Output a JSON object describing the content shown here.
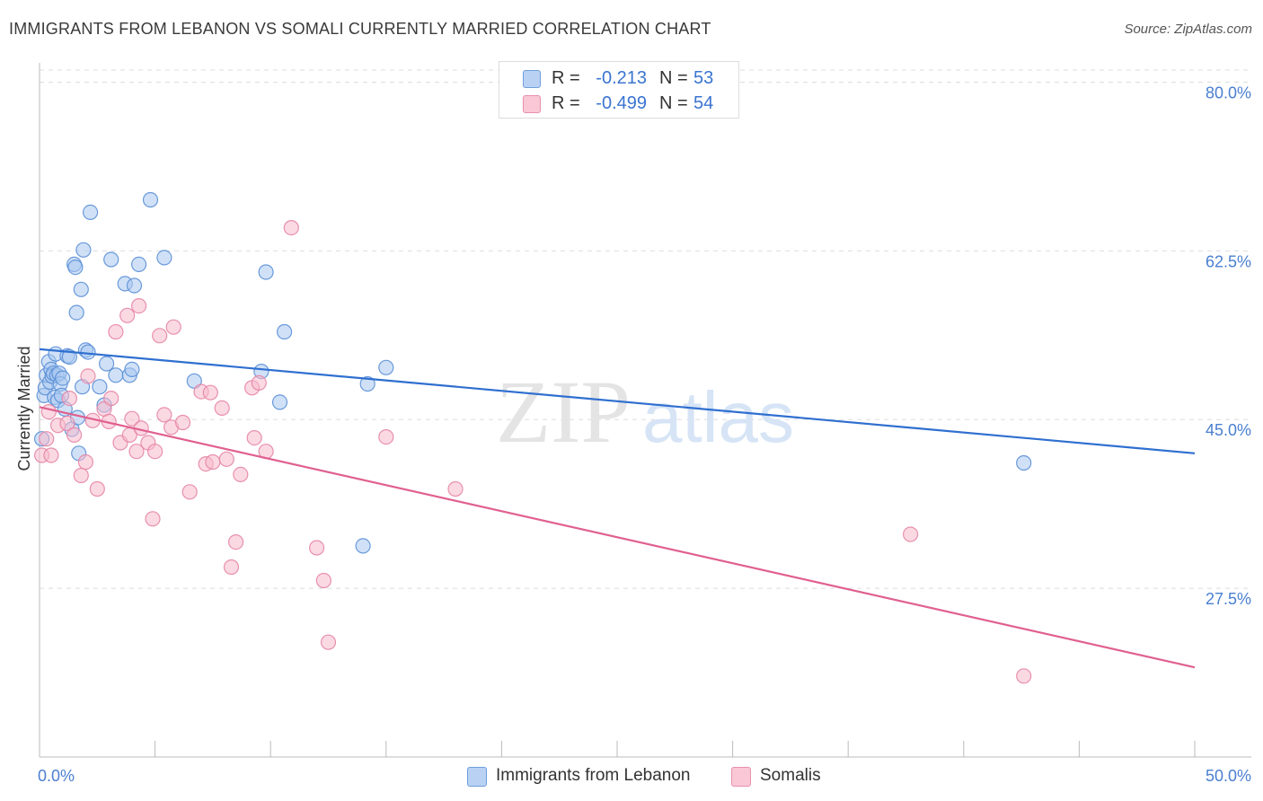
{
  "title": "IMMIGRANTS FROM LEBANON VS SOMALI CURRENTLY MARRIED CORRELATION CHART",
  "source": "Source: ZipAtlas.com",
  "watermark": {
    "zip": "ZIP",
    "atlas": "atlas"
  },
  "colors": {
    "blue_fill": "#a9c8f0",
    "blue_stroke": "#5b8fd6",
    "blue_line": "#2f6fd0",
    "pink_fill": "#f7b9cc",
    "pink_stroke": "#e585a6",
    "pink_line": "#e0608f",
    "axis_label": "#4a7fd0",
    "grid": "#dddddd"
  },
  "legend": [
    {
      "r_label": "R =",
      "r_value": "-0.213",
      "n_label": "N =",
      "n_value": "53"
    },
    {
      "r_label": "R =",
      "r_value": "-0.499",
      "n_label": "N =",
      "n_value": "54"
    }
  ],
  "bottom_legend": [
    "Immigrants from Lebanon",
    "Somalis"
  ],
  "chart_data": {
    "type": "scatter",
    "title": "IMMIGRANTS FROM LEBANON VS SOMALI CURRENTLY MARRIED CORRELATION CHART",
    "xlabel": "",
    "ylabel": "Currently Married",
    "xlim": [
      0,
      50
    ],
    "ylim": [
      10,
      82
    ],
    "x_tick_labels": [
      "0.0%",
      "50.0%"
    ],
    "y_ticks": [
      27.5,
      45.0,
      62.5,
      80.0
    ],
    "y_tick_labels": [
      "27.5%",
      "45.0%",
      "62.5%",
      "80.0%"
    ],
    "grid": true,
    "series": [
      {
        "name": "Immigrants from Lebanon",
        "r": -0.213,
        "n": 53,
        "trend": {
          "x": [
            0,
            50
          ],
          "y": [
            52.3,
            41.5
          ]
        },
        "points": [
          [
            0.1,
            43.0
          ],
          [
            0.2,
            47.5
          ],
          [
            0.25,
            48.3
          ],
          [
            0.3,
            49.6
          ],
          [
            0.4,
            51.0
          ],
          [
            0.45,
            48.9
          ],
          [
            0.5,
            50.2
          ],
          [
            0.55,
            49.5
          ],
          [
            0.6,
            49.8
          ],
          [
            0.65,
            47.3
          ],
          [
            0.7,
            51.8
          ],
          [
            0.75,
            49.6
          ],
          [
            0.8,
            47.0
          ],
          [
            0.85,
            49.8
          ],
          [
            0.9,
            48.7
          ],
          [
            0.95,
            47.5
          ],
          [
            1.0,
            49.3
          ],
          [
            1.1,
            46.1
          ],
          [
            1.2,
            51.6
          ],
          [
            1.3,
            51.5
          ],
          [
            1.4,
            44.0
          ],
          [
            1.5,
            61.1
          ],
          [
            1.55,
            60.8
          ],
          [
            1.6,
            56.1
          ],
          [
            1.65,
            45.2
          ],
          [
            1.7,
            41.5
          ],
          [
            1.8,
            58.5
          ],
          [
            1.85,
            48.4
          ],
          [
            1.9,
            62.6
          ],
          [
            2.0,
            52.2
          ],
          [
            2.1,
            52.0
          ],
          [
            2.2,
            66.5
          ],
          [
            2.6,
            48.4
          ],
          [
            2.8,
            46.5
          ],
          [
            2.9,
            50.8
          ],
          [
            3.1,
            61.6
          ],
          [
            3.3,
            49.6
          ],
          [
            3.7,
            59.1
          ],
          [
            3.9,
            49.6
          ],
          [
            4.0,
            50.2
          ],
          [
            4.1,
            58.9
          ],
          [
            4.3,
            61.1
          ],
          [
            4.8,
            67.8
          ],
          [
            5.4,
            61.8
          ],
          [
            6.7,
            49.0
          ],
          [
            9.6,
            50.0
          ],
          [
            9.8,
            60.3
          ],
          [
            10.4,
            46.8
          ],
          [
            10.6,
            54.1
          ],
          [
            14.0,
            31.9
          ],
          [
            14.2,
            48.7
          ],
          [
            15.0,
            50.4
          ],
          [
            42.6,
            40.5
          ]
        ]
      },
      {
        "name": "Somalis",
        "r": -0.499,
        "n": 54,
        "trend": {
          "x": [
            0,
            50
          ],
          "y": [
            46.3,
            19.3
          ]
        },
        "points": [
          [
            0.1,
            41.3
          ],
          [
            0.3,
            43.0
          ],
          [
            0.4,
            45.8
          ],
          [
            0.5,
            41.3
          ],
          [
            0.8,
            44.4
          ],
          [
            1.2,
            44.6
          ],
          [
            1.3,
            47.2
          ],
          [
            1.5,
            43.4
          ],
          [
            1.8,
            39.2
          ],
          [
            2.0,
            40.6
          ],
          [
            2.1,
            49.5
          ],
          [
            2.3,
            44.9
          ],
          [
            2.5,
            37.8
          ],
          [
            2.8,
            46.1
          ],
          [
            3.0,
            44.8
          ],
          [
            3.1,
            47.2
          ],
          [
            3.3,
            54.1
          ],
          [
            3.5,
            42.6
          ],
          [
            3.8,
            55.8
          ],
          [
            3.9,
            43.4
          ],
          [
            4.0,
            45.1
          ],
          [
            4.2,
            41.7
          ],
          [
            4.3,
            56.8
          ],
          [
            4.4,
            44.1
          ],
          [
            4.7,
            42.6
          ],
          [
            4.9,
            34.7
          ],
          [
            5.0,
            41.7
          ],
          [
            5.2,
            53.7
          ],
          [
            5.4,
            45.5
          ],
          [
            5.7,
            44.2
          ],
          [
            5.8,
            54.6
          ],
          [
            6.2,
            44.7
          ],
          [
            6.5,
            37.5
          ],
          [
            7.0,
            47.9
          ],
          [
            7.2,
            40.4
          ],
          [
            7.4,
            47.8
          ],
          [
            7.5,
            40.6
          ],
          [
            7.9,
            46.2
          ],
          [
            8.1,
            40.9
          ],
          [
            8.3,
            29.7
          ],
          [
            8.5,
            32.3
          ],
          [
            8.7,
            39.3
          ],
          [
            9.2,
            48.3
          ],
          [
            9.3,
            43.1
          ],
          [
            9.5,
            48.8
          ],
          [
            9.8,
            41.7
          ],
          [
            10.9,
            64.9
          ],
          [
            12.0,
            31.7
          ],
          [
            12.3,
            28.3
          ],
          [
            12.5,
            21.9
          ],
          [
            15.0,
            43.2
          ],
          [
            18.0,
            37.8
          ],
          [
            37.7,
            33.1
          ],
          [
            42.6,
            18.4
          ]
        ]
      }
    ]
  }
}
